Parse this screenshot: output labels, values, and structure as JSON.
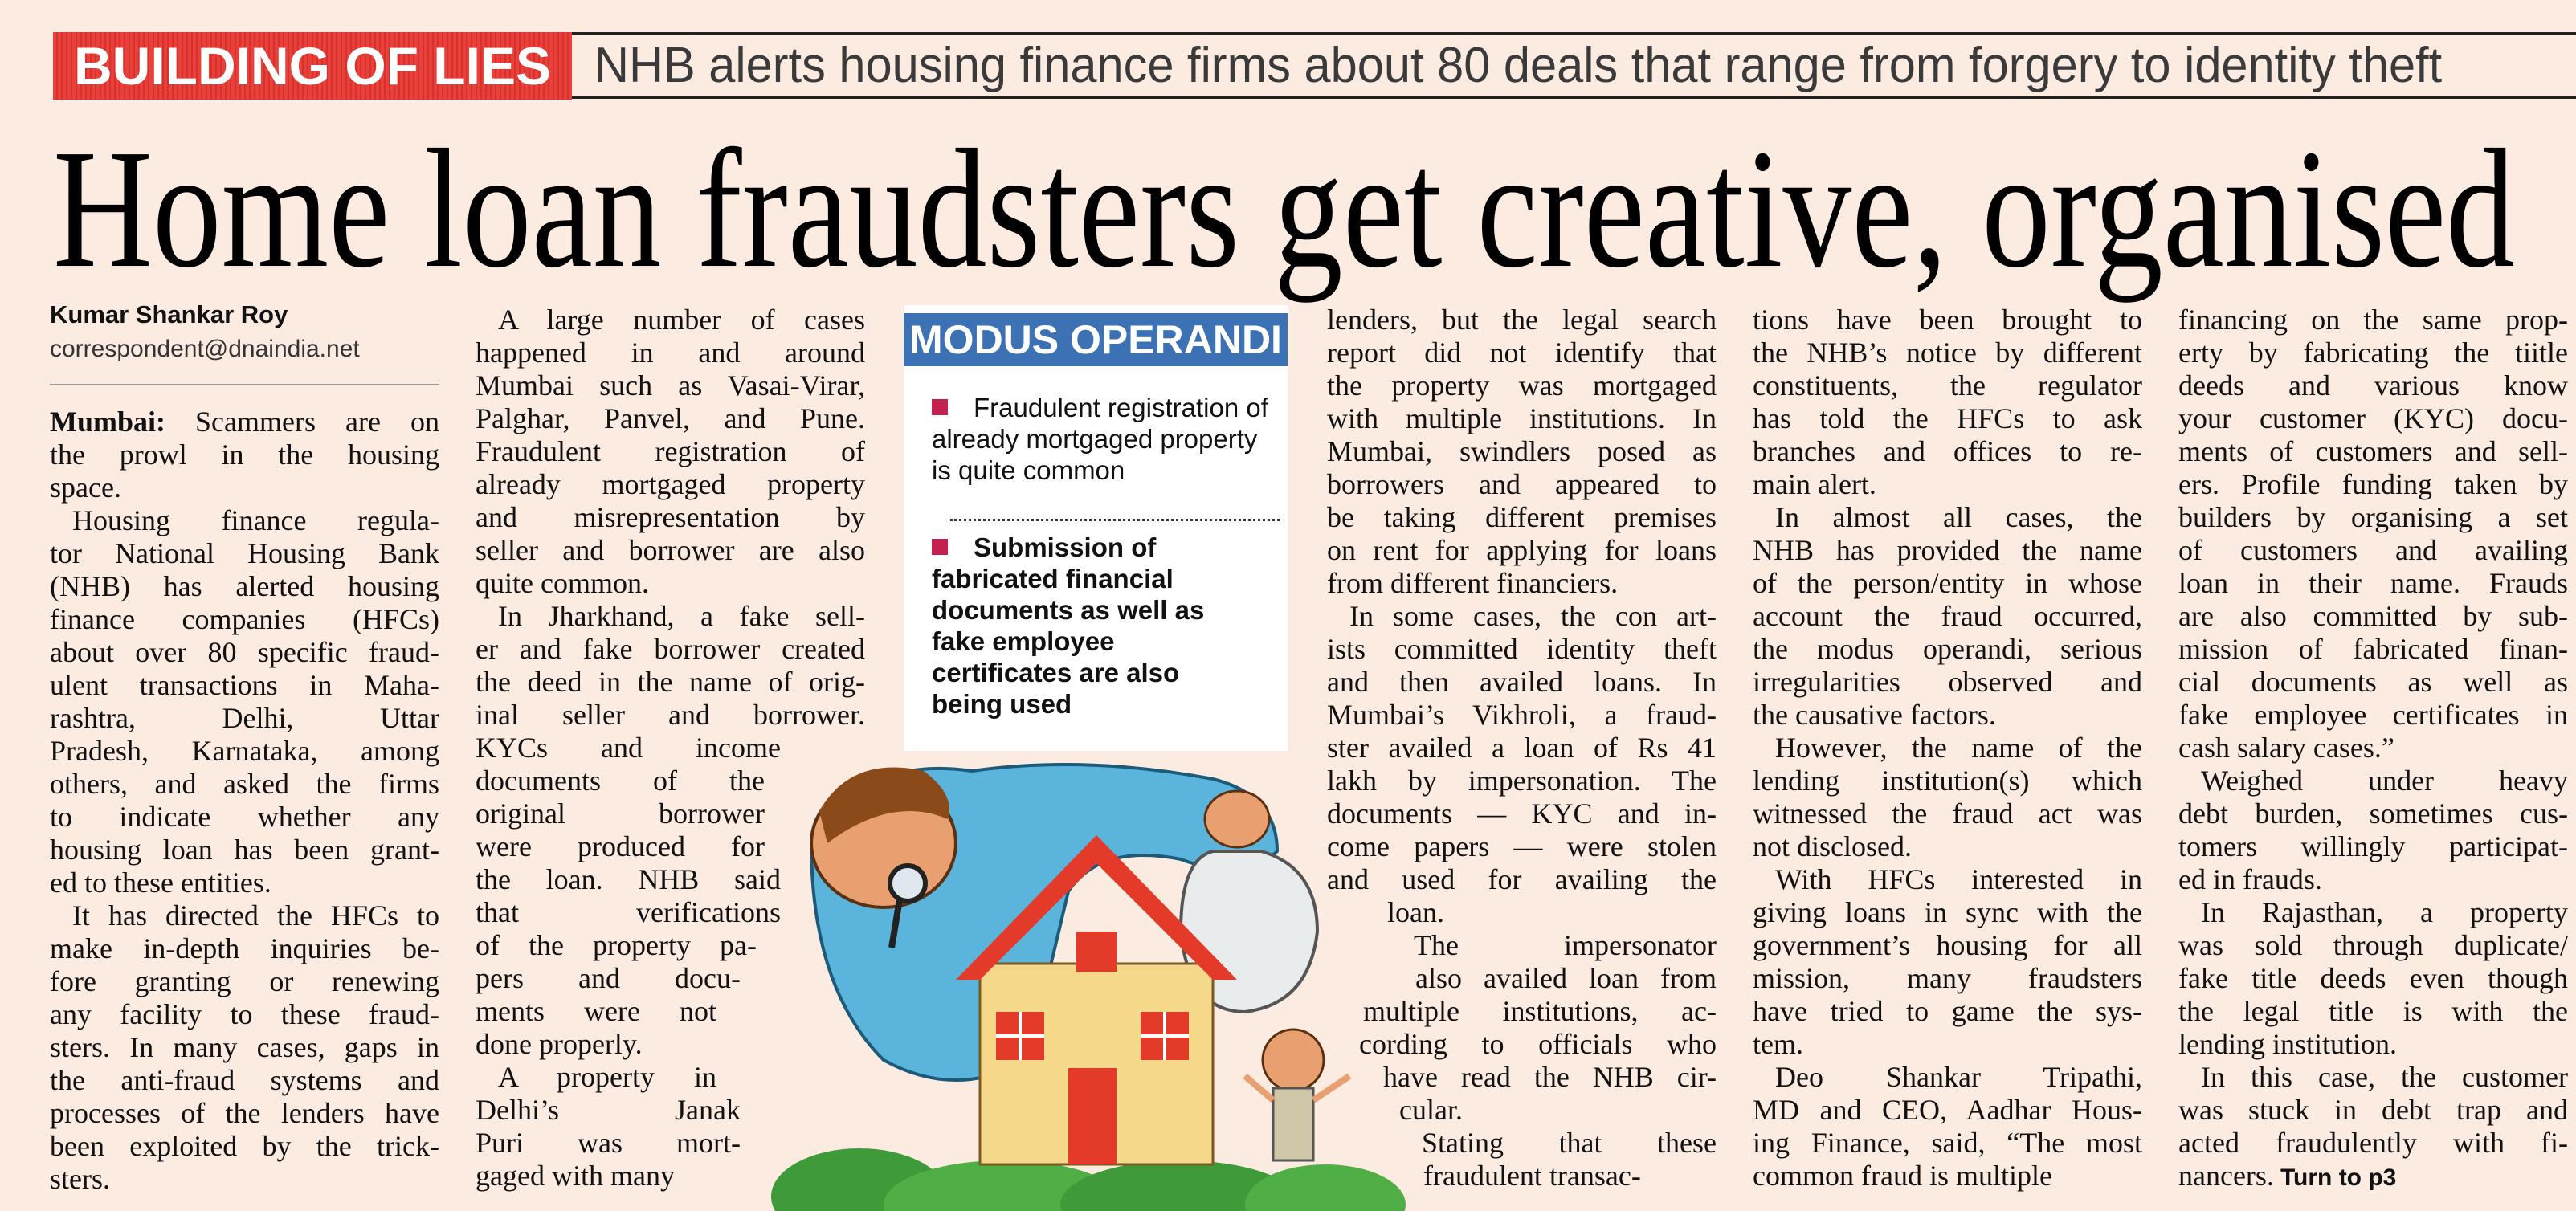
{
  "kicker": "BUILDING OF LIES",
  "subhead": "NHB alerts housing finance firms about 80 deals that range from forgery to identity theft",
  "headline": "Home loan fraudsters get creative, organised",
  "byline": {
    "name": "Kumar Shankar Roy",
    "email": "correspondent@dnaindia.net"
  },
  "sidebar": {
    "title": "MODUS OPERANDI",
    "items": [
      {
        "text": "Fraudulent registration of already mortgaged property is quite common",
        "bold": false
      },
      {
        "text": "Submission of fabricated financial documents as well as fake employee certificates are also being used",
        "bold": true
      }
    ]
  },
  "colors": {
    "kicker_red": "#e8403a",
    "sidebar_blue": "#3c72b4",
    "bullet": "#c42150",
    "paper": "#fbebe0"
  },
  "columns": [
    {
      "paragraphs": [
        {
          "lead": "Mumbai:",
          "lines": [
            "Scammers are on",
            "the prowl in the housing",
            "space."
          ]
        },
        {
          "lines": [
            "Housing finance regula-",
            "tor National Housing Bank",
            "(NHB) has alerted housing",
            "finance companies (HFCs)",
            "about over 80 specific fraud-",
            "ulent transactions in Maha-",
            "rashtra, Delhi, Uttar",
            "Pradesh, Karnataka, among",
            "others, and asked the firms",
            "to indicate whether any",
            "housing loan has been grant-",
            "ed to these entities."
          ]
        },
        {
          "lines": [
            "It has directed the HFCs to",
            "make in-depth inquiries be-",
            "fore granting or renewing",
            "any facility to these fraud-",
            "sters. In many cases, gaps in",
            "the anti-fraud systems and",
            "processes of the lenders have",
            "been exploited by the trick-",
            "sters."
          ]
        }
      ]
    },
    {
      "paragraphs": [
        {
          "lines": [
            "A large number of cases",
            "happened in and around",
            "Mumbai such as Vasai-Virar,",
            "Palghar, Panvel, and Pune.",
            "Fraudulent registration of",
            "already mortgaged property",
            "and misrepresentation by",
            "seller and borrower are also",
            "quite common."
          ]
        },
        {
          "lines": [
            "In Jharkhand, a fake sell-",
            "er and fake borrower created",
            "the deed in the name of orig-",
            "inal seller and borrower.",
            "KYCs and income",
            "documents of the",
            "original borrower",
            "were produced for",
            "the loan. NHB said",
            "that verifications",
            "of the property pa-",
            "pers and docu-",
            "ments were not",
            "done properly."
          ]
        },
        {
          "lines": [
            "A property in",
            "Delhi’s Janak",
            "Puri was mort-",
            "gaged with many"
          ]
        }
      ]
    },
    {
      "paragraphs": [
        {
          "lines": [
            "lenders, but the legal search",
            "report did not identify that",
            "the property was mortgaged",
            "with multiple institutions. In",
            "Mumbai, swindlers posed as",
            "borrowers and appeared to",
            "be taking different premises",
            "on rent for applying for loans",
            "from different financiers."
          ]
        },
        {
          "lines": [
            "In some cases, the con art-",
            "ists committed identity theft",
            "and then availed loans. In",
            "Mumbai’s Vikhroli, a fraud-",
            "ster availed a loan of Rs 41",
            "lakh by impersonation. The",
            "documents — KYC and in-",
            "come papers — were stolen",
            "and used for availing the",
            "loan."
          ]
        },
        {
          "lines": [
            "The impersonator",
            "also availed loan from",
            "multiple institutions, ac-",
            "cording to officials who",
            "have read the NHB cir-",
            "cular."
          ]
        },
        {
          "lines": [
            "Stating that these",
            "fraudulent transac-"
          ]
        }
      ]
    },
    {
      "paragraphs": [
        {
          "lines": [
            "tions have been brought to",
            "the NHB’s notice by different",
            "constituents, the regulator",
            "has told the HFCs to ask",
            "branches and offices to re-",
            "main alert."
          ]
        },
        {
          "lines": [
            "In almost all cases, the",
            "NHB has provided the name",
            "of the person/entity in whose",
            "account the fraud occurred,",
            "the modus operandi, serious",
            "irregularities observed and",
            "the causative factors."
          ]
        },
        {
          "lines": [
            "However, the name of the",
            "lending institution(s) which",
            "witnessed the fraud act was",
            "not disclosed."
          ]
        },
        {
          "lines": [
            "With HFCs interested in",
            "giving loans in sync with the",
            "government’s housing for all",
            "mission, many fraudsters",
            "have tried to game the sys-",
            "tem."
          ]
        },
        {
          "lines": [
            "Deo Shankar Tripathi,",
            "MD and CEO, Aadhar Hous-",
            "ing Finance, said, “The most",
            "common fraud is multiple"
          ]
        }
      ]
    },
    {
      "paragraphs": [
        {
          "lines": [
            "financing on the same prop-",
            "erty by fabricating the tiitle",
            "deeds and various know",
            "your customer (KYC) docu-",
            "ments of customers and sell-",
            "ers. Profile funding taken by",
            "builders by organising a set",
            "of customers and availing",
            "loan in their name. Frauds",
            "are also committed by sub-",
            "mission of fabricated finan-",
            "cial documents as well as",
            "fake employee certificates in",
            "cash salary cases.”"
          ]
        },
        {
          "lines": [
            "Weighed under heavy",
            "debt burden, sometimes cus-",
            "tomers willingly participat-",
            "ed in frauds."
          ]
        },
        {
          "lines": [
            "In Rajasthan, a property",
            "was sold through duplicate/",
            "fake title deeds even though",
            "the legal title is with the",
            "lending institution."
          ]
        },
        {
          "jump": "Turn to p3",
          "lines": [
            "In this case, the customer",
            "was stuck in debt trap and",
            "acted fraudulently with fi-",
            "nancers."
          ]
        }
      ]
    }
  ]
}
